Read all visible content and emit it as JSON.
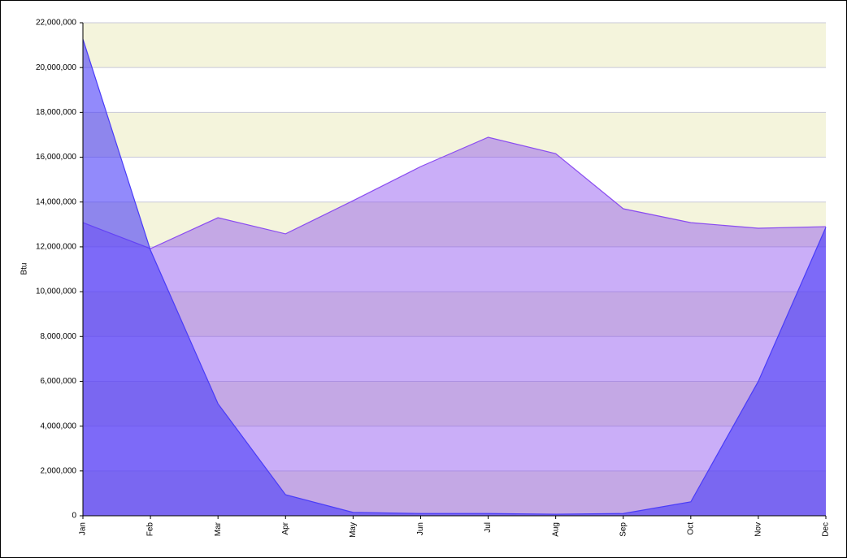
{
  "chart_data": {
    "type": "area",
    "y_label": "Btu",
    "categories": [
      "Jan",
      "Feb",
      "Mar",
      "Apr",
      "May",
      "Jun",
      "Jul",
      "Aug",
      "Sep",
      "Oct",
      "Nov",
      "Dec"
    ],
    "series": [
      {
        "color": "#8a4cf0",
        "values": [
          13080000,
          11920000,
          13300000,
          12580000,
          14060000,
          15580000,
          16890000,
          16160000,
          13700000,
          13080000,
          12830000,
          12900000
        ]
      },
      {
        "color": "#4a3cf8",
        "values": [
          21270000,
          11850000,
          5000000,
          940000,
          150000,
          100000,
          100000,
          70000,
          100000,
          620000,
          6000000,
          12870000
        ]
      }
    ],
    "ylim": [
      0,
      22000000
    ],
    "yticks": [
      0,
      {
        "value": 2000000,
        "label": "2,000,000"
      },
      {
        "value": 4000000,
        "label": "4,000,000"
      },
      {
        "value": 6000000,
        "label": "6,000,000"
      },
      {
        "value": 8000000,
        "label": "8,000,000"
      },
      {
        "value": 10000000,
        "label": "10,000,000"
      },
      {
        "value": 12000000,
        "label": "12,000,000"
      },
      {
        "value": 14000000,
        "label": "14,000,000"
      },
      {
        "value": 16000000,
        "label": "16,000,000"
      },
      {
        "value": 18000000,
        "label": "18,000,000"
      },
      {
        "value": 20000000,
        "label": "20,000,000"
      },
      {
        "value": 22000000,
        "label": "22,000,000"
      }
    ],
    "grid": true
  }
}
